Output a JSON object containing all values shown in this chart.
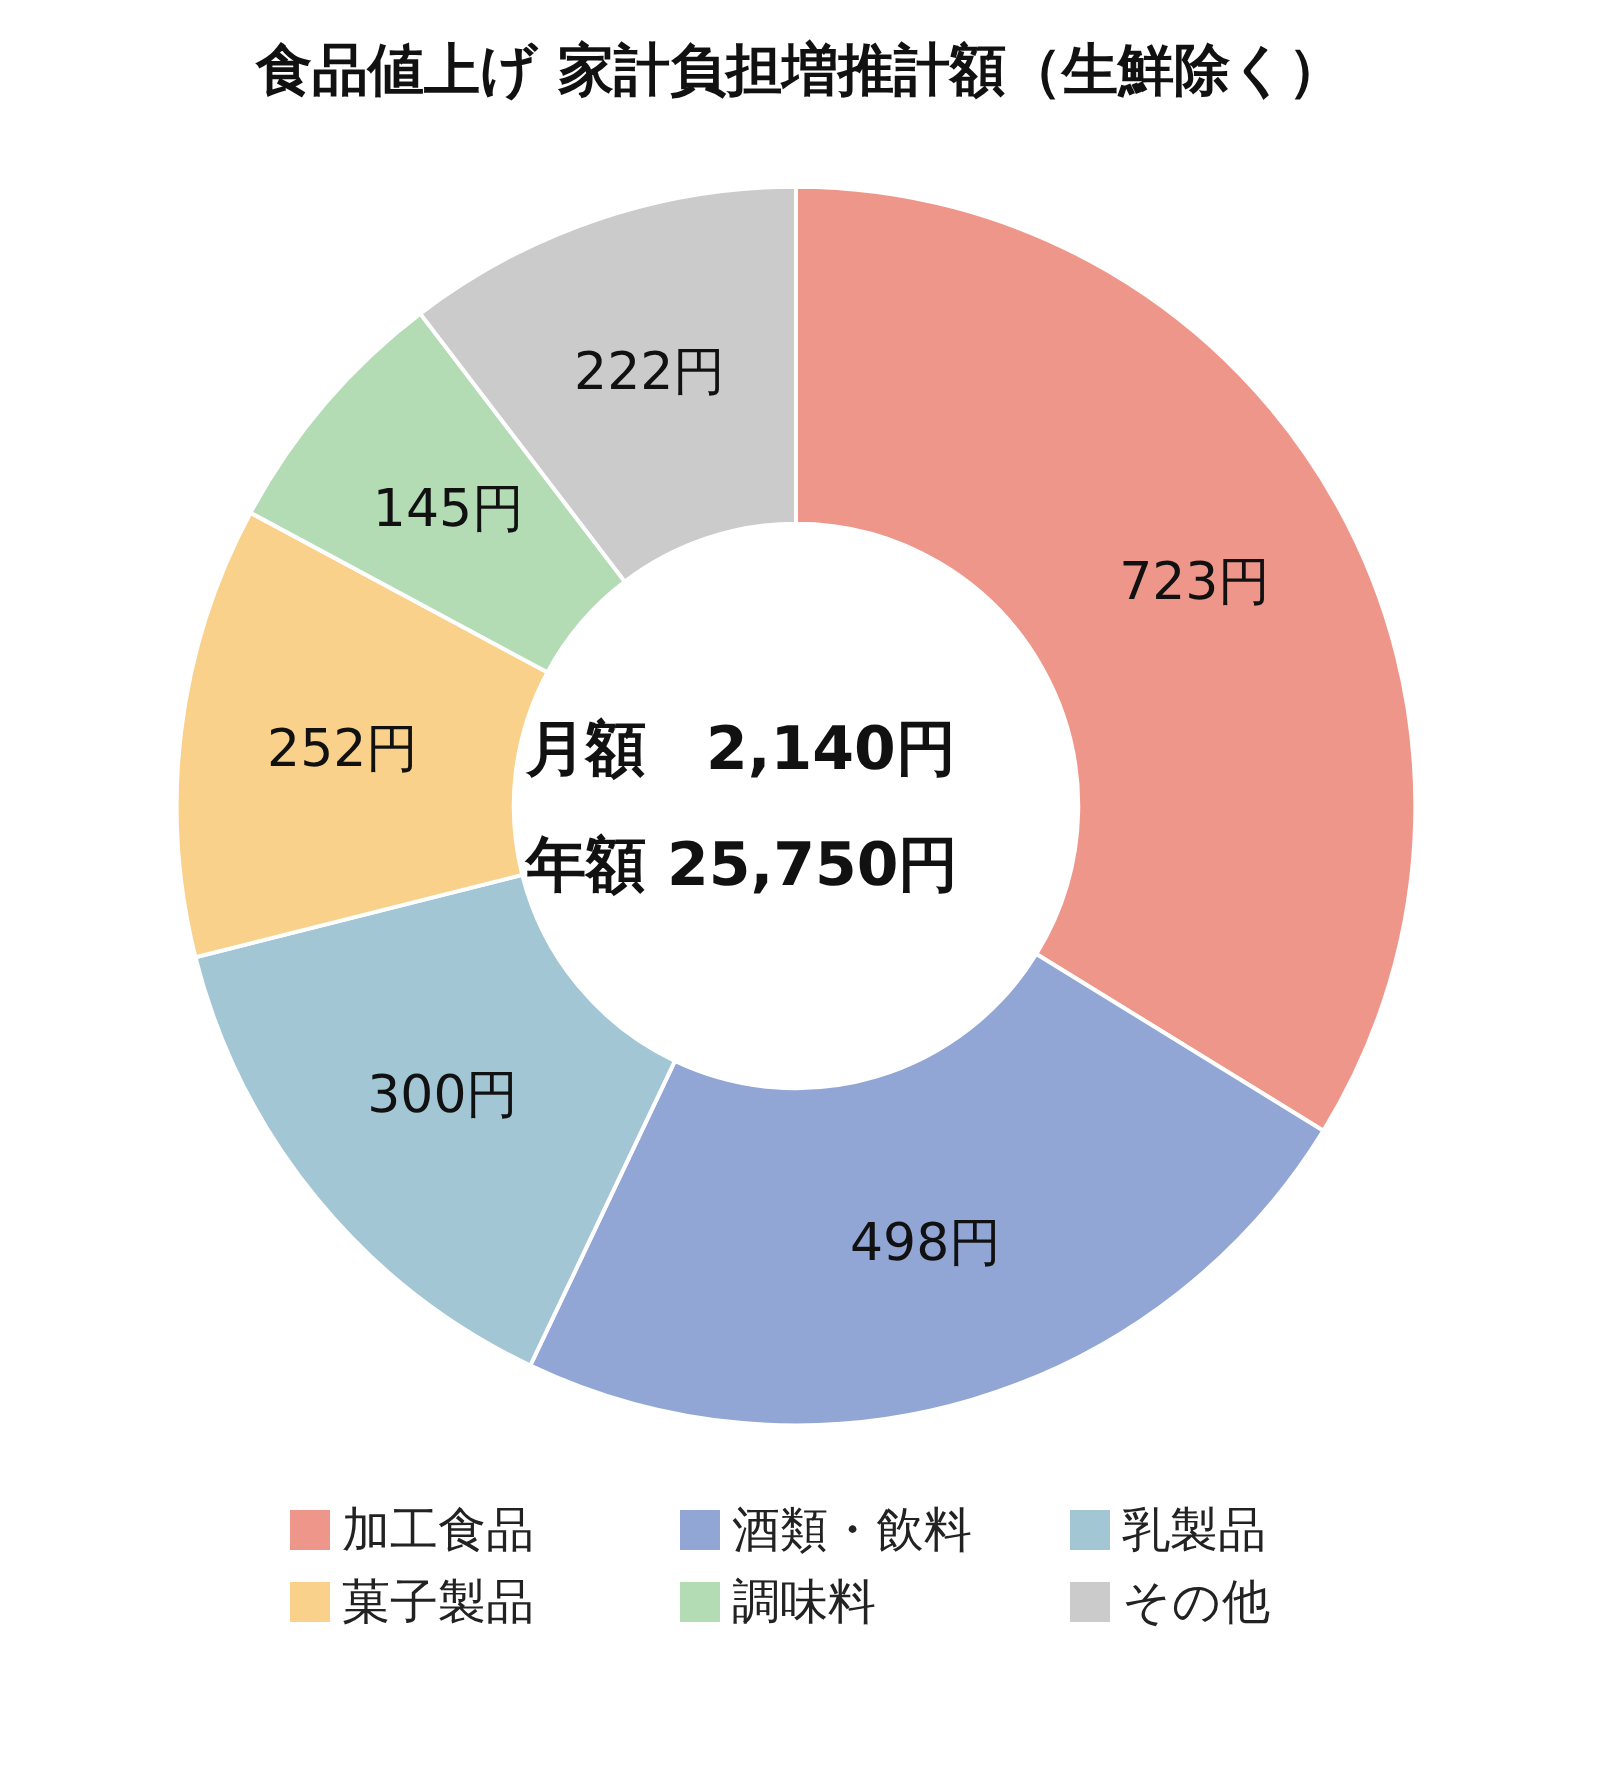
{
  "chart_data": {
    "type": "donut",
    "title": "食品値上げ 家計負担増推計額（生鮮除く）",
    "categories": [
      "加工食品",
      "酒類・飲料",
      "乳製品",
      "菓子製品",
      "調味料",
      "その他"
    ],
    "values": [
      723,
      498,
      300,
      252,
      145,
      222
    ],
    "value_labels": [
      "723円",
      "498円",
      "300円",
      "252円",
      "145円",
      "222円"
    ],
    "colors": [
      "#ef968a",
      "#92a6d6",
      "#a3c6d4",
      "#f9d18a",
      "#b3dbb4",
      "#cbcbcb"
    ],
    "annotations": [
      "月額　2,140円",
      "年額 25,750円"
    ],
    "legend": "bottom"
  }
}
